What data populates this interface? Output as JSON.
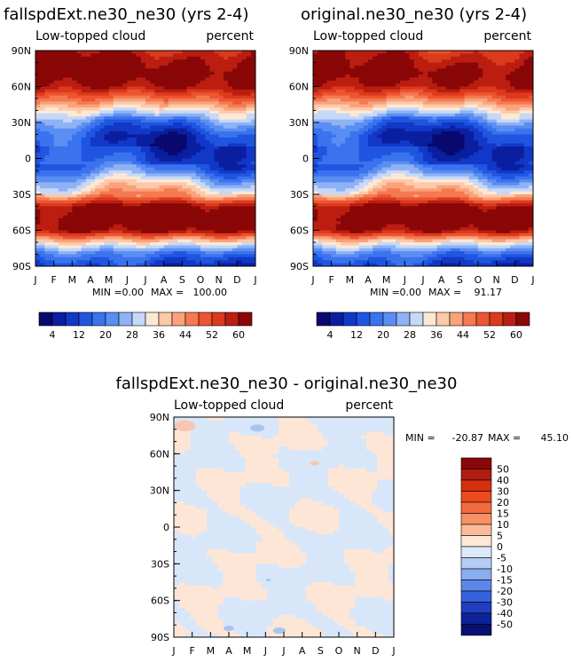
{
  "chart_data": [
    {
      "type": "heatmap",
      "panel": "top-left",
      "title": "fallspdExt.ne30_ne30 (yrs 2-4)",
      "left_label": "Low-topped cloud",
      "right_label": "percent",
      "x_ticks": [
        "J",
        "F",
        "M",
        "A",
        "M",
        "J",
        "J",
        "A",
        "S",
        "O",
        "N",
        "D",
        "J"
      ],
      "y_ticks": [
        "90N",
        "60N",
        "30N",
        "0",
        "30S",
        "60S",
        "90S"
      ],
      "ylim": [
        -90,
        90
      ],
      "stats": {
        "min_label": "MIN =",
        "min": "0.00",
        "max_label": "MAX =",
        "max": "100.00"
      },
      "colorbar_labels": [
        "4",
        "12",
        "20",
        "28",
        "36",
        "44",
        "52",
        "60"
      ],
      "zonal_profile": [
        {
          "lat": 90,
          "value": 58
        },
        {
          "lat": 80,
          "value": 62
        },
        {
          "lat": 70,
          "value": 64
        },
        {
          "lat": 60,
          "value": 60
        },
        {
          "lat": 50,
          "value": 48
        },
        {
          "lat": 40,
          "value": 34
        },
        {
          "lat": 30,
          "value": 20
        },
        {
          "lat": 20,
          "value": 12
        },
        {
          "lat": 10,
          "value": 10
        },
        {
          "lat": 0,
          "value": 12
        },
        {
          "lat": -10,
          "value": 18
        },
        {
          "lat": -20,
          "value": 30
        },
        {
          "lat": -30,
          "value": 40
        },
        {
          "lat": -40,
          "value": 62
        },
        {
          "lat": -50,
          "value": 64
        },
        {
          "lat": -60,
          "value": 62
        },
        {
          "lat": -70,
          "value": 36
        },
        {
          "lat": -80,
          "value": 18
        },
        {
          "lat": -90,
          "value": 10
        }
      ]
    },
    {
      "type": "heatmap",
      "panel": "top-right",
      "title": "original.ne30_ne30 (yrs 2-4)",
      "left_label": "Low-topped cloud",
      "right_label": "percent",
      "x_ticks": [
        "J",
        "F",
        "M",
        "A",
        "M",
        "J",
        "J",
        "A",
        "S",
        "O",
        "N",
        "D",
        "J"
      ],
      "y_ticks": [
        "90N",
        "60N",
        "30N",
        "0",
        "30S",
        "60S",
        "90S"
      ],
      "ylim": [
        -90,
        90
      ],
      "stats": {
        "min_label": "MIN =",
        "min": "0.00",
        "max_label": "MAX =",
        "max": "91.17"
      },
      "colorbar_labels": [
        "4",
        "12",
        "20",
        "28",
        "36",
        "44",
        "52",
        "60"
      ],
      "zonal_profile": [
        {
          "lat": 90,
          "value": 56
        },
        {
          "lat": 80,
          "value": 60
        },
        {
          "lat": 70,
          "value": 63
        },
        {
          "lat": 60,
          "value": 59
        },
        {
          "lat": 50,
          "value": 47
        },
        {
          "lat": 40,
          "value": 33
        },
        {
          "lat": 30,
          "value": 19
        },
        {
          "lat": 20,
          "value": 11
        },
        {
          "lat": 10,
          "value": 10
        },
        {
          "lat": 0,
          "value": 12
        },
        {
          "lat": -10,
          "value": 18
        },
        {
          "lat": -20,
          "value": 30
        },
        {
          "lat": -30,
          "value": 40
        },
        {
          "lat": -40,
          "value": 62
        },
        {
          "lat": -50,
          "value": 64
        },
        {
          "lat": -60,
          "value": 61
        },
        {
          "lat": -70,
          "value": 35
        },
        {
          "lat": -80,
          "value": 18
        },
        {
          "lat": -90,
          "value": 10
        }
      ]
    },
    {
      "type": "heatmap",
      "panel": "bottom-difference",
      "title": "fallspdExt.ne30_ne30 - original.ne30_ne30",
      "left_label": "Low-topped cloud",
      "right_label": "percent",
      "x_ticks": [
        "J",
        "F",
        "M",
        "A",
        "M",
        "J",
        "J",
        "A",
        "S",
        "O",
        "N",
        "D",
        "J"
      ],
      "y_ticks": [
        "90N",
        "60N",
        "30N",
        "0",
        "30S",
        "60S",
        "90S"
      ],
      "ylim": [
        -90,
        90
      ],
      "stats": {
        "min_label": "MIN =",
        "min": "-20.87",
        "max_label": "MAX =",
        "max": "45.10"
      },
      "colorbar_labels": [
        "50",
        "40",
        "30",
        "20",
        "15",
        "10",
        "5",
        "0",
        "-5",
        "-10",
        "-15",
        "-20",
        "-30",
        "-40",
        "-50"
      ]
    }
  ],
  "palettes": {
    "absolute": [
      "#08086e",
      "#0a1fa0",
      "#1238c8",
      "#1f55e0",
      "#3b72ee",
      "#5b8ef2",
      "#8fb2f5",
      "#c5d8f8",
      "#fde8d6",
      "#fcc9a9",
      "#f9a27c",
      "#f47a52",
      "#ec5530",
      "#dc3a1c",
      "#bb1e10",
      "#8a0707"
    ],
    "difference": [
      "#8a0707",
      "#b01d10",
      "#d6300f",
      "#ec4a1c",
      "#f26a3e",
      "#f89066",
      "#fbbb98",
      "#fde8d6",
      "#dce9fa",
      "#b5ccf5",
      "#8aacf0",
      "#5c86ea",
      "#3562dc",
      "#1f3fc0",
      "#0d239a",
      "#061070"
    ],
    "difference_field_red": "#fde6d6",
    "difference_field_blue": "#d8e6fa",
    "difference_spot_red": "#f9c6ae",
    "difference_spot_blue": "#a9c3f2"
  }
}
